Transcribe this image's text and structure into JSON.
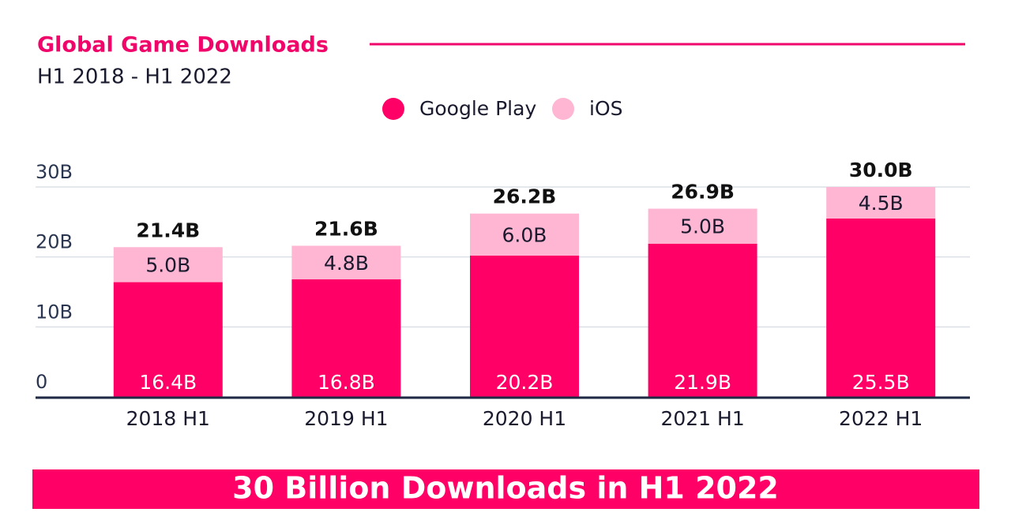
{
  "chart_data": {
    "type": "stacked_bar",
    "title": "Global Game Downloads",
    "subtitle": "H1 2018 - H1 2022",
    "categories": [
      "2018 H1",
      "2019 H1",
      "2020 H1",
      "2021 H1",
      "2022 H1"
    ],
    "series": [
      {
        "name": "Google Play",
        "color": "#ff0066",
        "values": [
          16.4,
          16.8,
          20.2,
          21.9,
          25.5
        ],
        "value_labels": [
          "16.4B",
          "16.8B",
          "20.2B",
          "21.9B",
          "25.5B"
        ]
      },
      {
        "name": "iOS",
        "color": "#ffb6d3",
        "values": [
          5.0,
          4.8,
          6.0,
          5.0,
          4.5
        ],
        "value_labels": [
          "5.0B",
          "4.8B",
          "6.0B",
          "5.0B",
          "4.5B"
        ]
      }
    ],
    "totals": {
      "values": [
        21.4,
        21.6,
        26.2,
        26.9,
        30.0
      ],
      "value_labels": [
        "21.4B",
        "21.6B",
        "26.2B",
        "26.9B",
        "30.0B"
      ]
    },
    "ylim": [
      0,
      30
    ],
    "yticks": [
      0,
      {
        "value": 10,
        "label": "10B"
      },
      {
        "value": 20,
        "label": "20B"
      },
      {
        "value": 30,
        "label": "30B"
      }
    ],
    "grid": true,
    "legend": "top",
    "banner": "30 Billion Downloads in H1 2022"
  }
}
